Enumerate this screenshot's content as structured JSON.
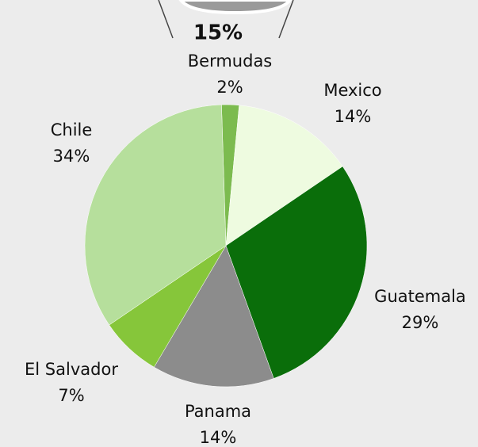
{
  "chart_data": {
    "type": "pie",
    "annotation": "15%",
    "categories": [
      "Bermudas",
      "Mexico",
      "Guatemala",
      "Panama",
      "El Salvador",
      "Chile"
    ],
    "values": [
      2,
      14,
      29,
      14,
      7,
      34
    ],
    "value_labels": [
      "2%",
      "14%",
      "29%",
      "14%",
      "7%",
      "34%"
    ],
    "colors": [
      "#7cbb4f",
      "#eefbe0",
      "#0a6e0a",
      "#8c8c8c",
      "#86c63a",
      "#b6df9c"
    ]
  }
}
